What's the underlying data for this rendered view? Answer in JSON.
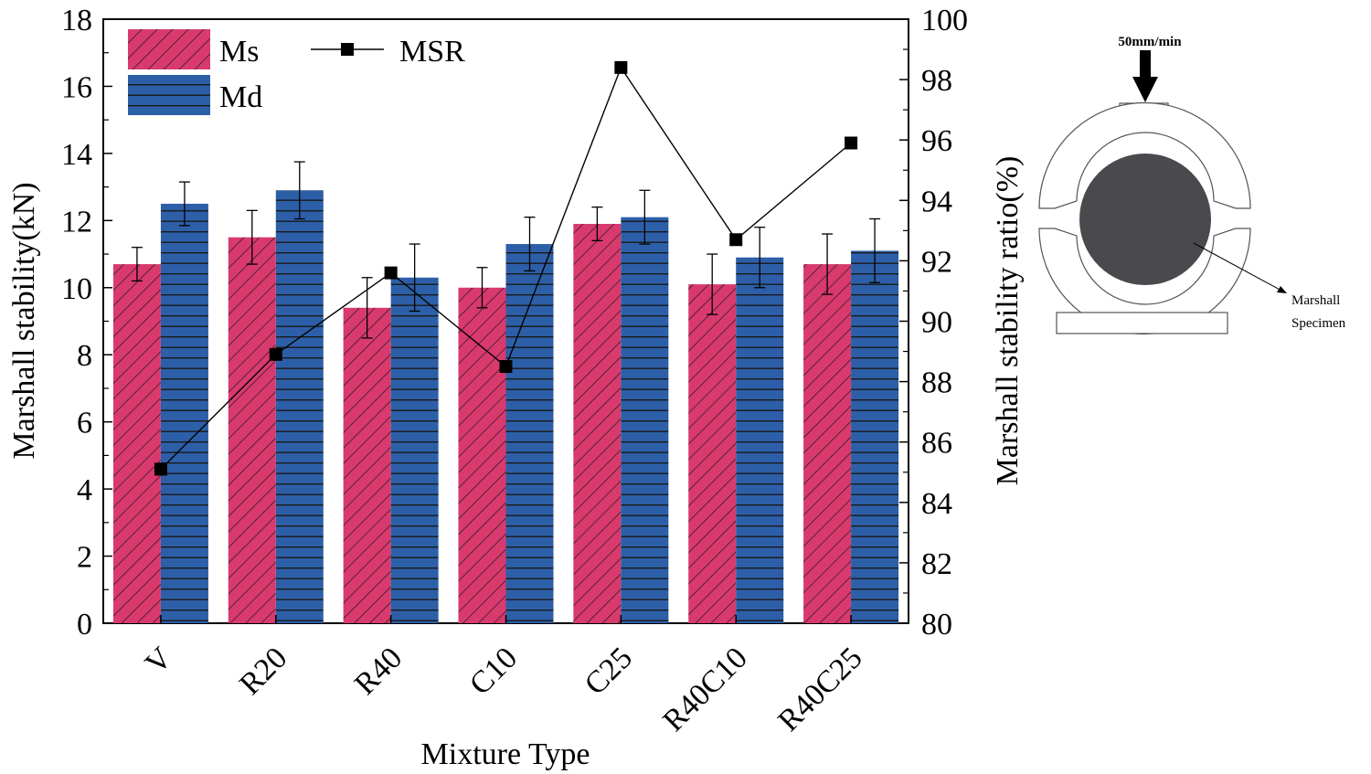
{
  "chart_data": {
    "type": "bar",
    "categories": [
      "V",
      "R20",
      "R40",
      "C10",
      "C25",
      "R40C10",
      "R40C25"
    ],
    "xlabel": "Mixture Type",
    "ylabel": "Marshall stability(kN)",
    "ylabel_right": "Marshall stability ratio(%)",
    "ylim": [
      0,
      18
    ],
    "ylim_right": [
      80,
      100
    ],
    "yticks": [
      "0",
      "2",
      "4",
      "6",
      "8",
      "10",
      "12",
      "14",
      "16",
      "18"
    ],
    "yticks_right": [
      "80",
      "82",
      "84",
      "86",
      "88",
      "90",
      "92",
      "94",
      "96",
      "98",
      "100"
    ],
    "series": [
      {
        "name": "Ms",
        "type": "bar",
        "axis": "left",
        "color": "#d93a6e",
        "pattern": "diagonal-hatch",
        "values": [
          10.7,
          11.5,
          9.4,
          10.0,
          11.9,
          10.1,
          10.7
        ],
        "errors": [
          0.5,
          0.8,
          0.9,
          0.6,
          0.5,
          0.9,
          0.9
        ]
      },
      {
        "name": "Md",
        "type": "bar",
        "axis": "left",
        "color": "#2d5fa8",
        "pattern": "horizontal-hatch",
        "values": [
          12.5,
          12.9,
          10.3,
          11.3,
          12.1,
          10.9,
          11.1
        ],
        "errors": [
          0.65,
          0.85,
          1.0,
          0.8,
          0.8,
          0.9,
          0.95
        ]
      },
      {
        "name": "MSR",
        "type": "line",
        "axis": "right",
        "color": "#000000",
        "marker": "square",
        "values": [
          85.1,
          88.9,
          91.6,
          88.5,
          98.4,
          92.7,
          95.9
        ]
      }
    ],
    "legend": "top-left, two columns"
  },
  "diagram": {
    "load_rate_label": "50mm/min",
    "specimen_label_line1": "Marshall",
    "specimen_label_line2": "Specimen"
  }
}
